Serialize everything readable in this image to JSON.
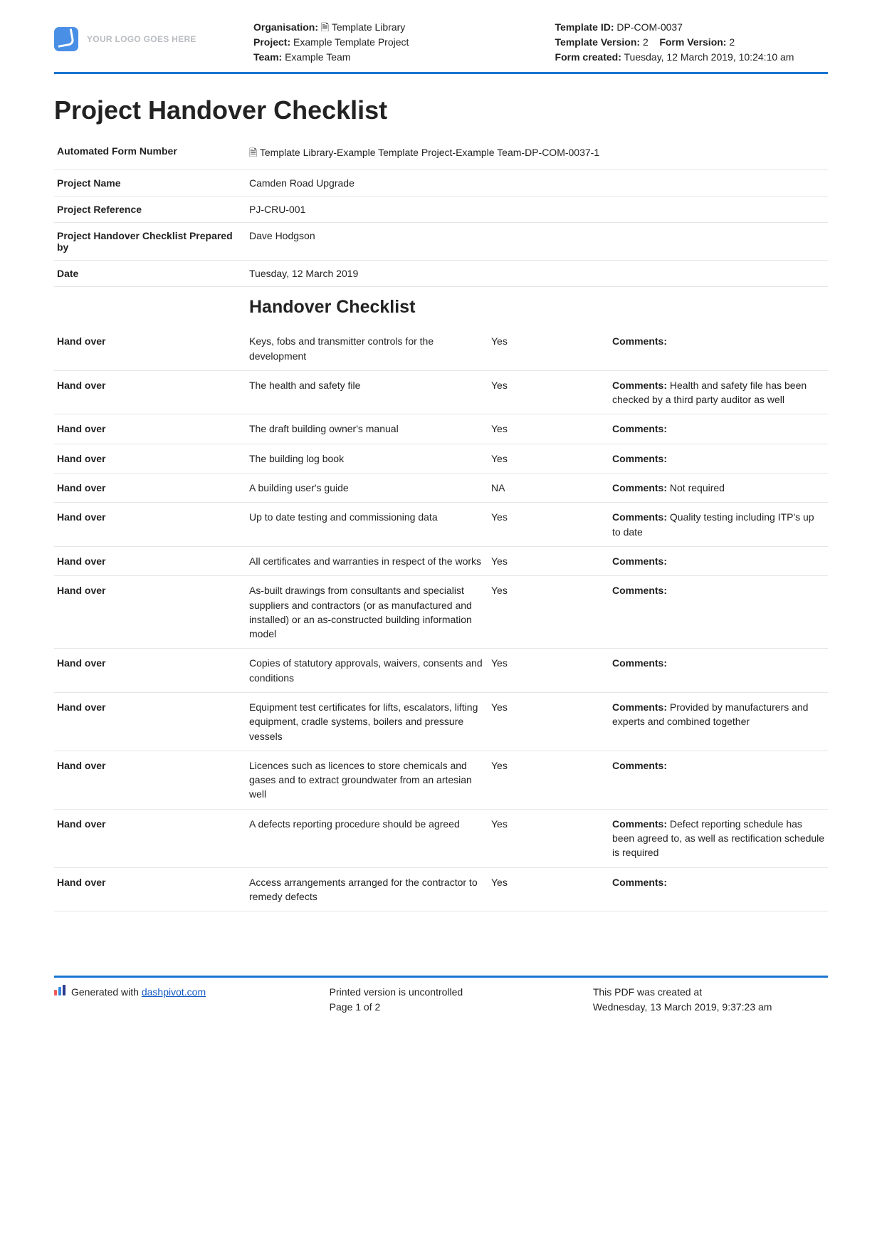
{
  "logo_text": "YOUR LOGO GOES HERE",
  "header": {
    "org_label": "Organisation:",
    "org_value": "Template Library",
    "project_label": "Project:",
    "project_value": "Example Template Project",
    "team_label": "Team:",
    "team_value": "Example Team",
    "template_id_label": "Template ID:",
    "template_id_value": "DP-COM-0037",
    "template_version_label": "Template Version:",
    "template_version_value": "2",
    "form_version_label": "Form Version:",
    "form_version_value": "2",
    "form_created_label": "Form created:",
    "form_created_value": "Tuesday, 12 March 2019, 10:24:10 am"
  },
  "title": "Project Handover Checklist",
  "info_rows": [
    {
      "label": "Automated Form Number",
      "value": "Template Library-Example Template Project-Example Team-DP-COM-0037-1"
    },
    {
      "label": "Project Name",
      "value": "Camden Road Upgrade"
    },
    {
      "label": "Project Reference",
      "value": "PJ-CRU-001"
    },
    {
      "label": "Project Handover Checklist Prepared by",
      "value": "Dave Hodgson"
    },
    {
      "label": "Date",
      "value": "Tuesday, 12 March 2019"
    }
  ],
  "checklist_heading": "Handover Checklist",
  "row_label": "Hand over",
  "comments_label": "Comments:",
  "checklist": [
    {
      "item": "Keys, fobs and transmitter controls for the development",
      "status": "Yes",
      "comment": ""
    },
    {
      "item": "The health and safety file",
      "status": "Yes",
      "comment": "Health and safety file has been checked by a third party auditor as well"
    },
    {
      "item": "The draft building owner's manual",
      "status": "Yes",
      "comment": ""
    },
    {
      "item": "The building log book",
      "status": "Yes",
      "comment": ""
    },
    {
      "item": "A building user's guide",
      "status": "NA",
      "comment": "Not required"
    },
    {
      "item": "Up to date testing and commissioning data",
      "status": "Yes",
      "comment": "Quality testing including ITP's up to date"
    },
    {
      "item": "All certificates and warranties in respect of the works",
      "status": "Yes",
      "comment": ""
    },
    {
      "item": "As-built drawings from consultants and specialist suppliers and contractors (or as manufactured and installed) or an as-constructed building information model",
      "status": "Yes",
      "comment": ""
    },
    {
      "item": "Copies of statutory approvals, waivers, consents and conditions",
      "status": "Yes",
      "comment": ""
    },
    {
      "item": "Equipment test certificates for lifts, escalators, lifting equipment, cradle systems, boilers and pressure vessels",
      "status": "Yes",
      "comment": "Provided by manufacturers and experts and combined together"
    },
    {
      "item": "Licences such as licences to store chemicals and gases and to extract groundwater from an artesian well",
      "status": "Yes",
      "comment": ""
    },
    {
      "item": "A defects reporting procedure should be agreed",
      "status": "Yes",
      "comment": "Defect reporting schedule has been agreed to, as well as rectification schedule is required"
    },
    {
      "item": "Access arrangements arranged for the contractor to remedy defects",
      "status": "Yes",
      "comment": ""
    }
  ],
  "footer": {
    "generated_prefix": "Generated with ",
    "link_text": "dashpivot.com",
    "uncontrolled": "Printed version is uncontrolled",
    "page_info": "Page 1 of 2",
    "created_prefix": "This PDF was created at",
    "created_value": "Wednesday, 13 March 2019, 9:37:23 am"
  }
}
